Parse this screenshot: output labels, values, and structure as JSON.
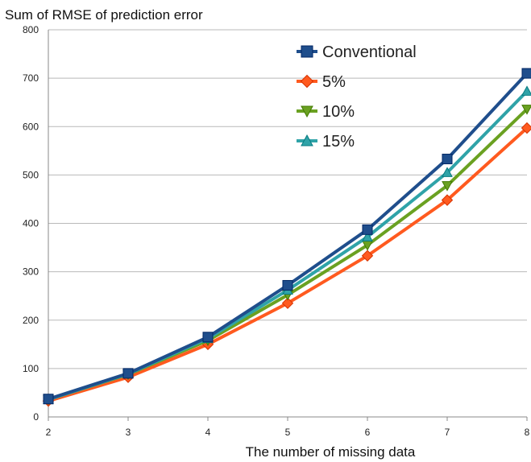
{
  "chart_data": {
    "type": "line",
    "title": "",
    "ylabel": "Sum of RMSE of prediction error",
    "xlabel": "The number of missing data",
    "x": [
      2,
      3,
      4,
      5,
      6,
      7,
      8
    ],
    "xlim": [
      2,
      8
    ],
    "ylim": [
      0,
      800
    ],
    "yticks": [
      0,
      100,
      200,
      300,
      400,
      500,
      600,
      700,
      800
    ],
    "grid": "horizontal",
    "legend_position": "top-right",
    "series": [
      {
        "name": "Conventional",
        "color": "#1f4e8c",
        "marker": "square",
        "values": [
          37,
          90,
          165,
          272,
          387,
          533,
          710
        ]
      },
      {
        "name": "5%",
        "color": "#ff5a1f",
        "marker": "diamond",
        "values": [
          33,
          82,
          150,
          235,
          333,
          448,
          597
        ]
      },
      {
        "name": "10%",
        "color": "#6aa121",
        "marker": "triangle-down",
        "values": [
          36,
          88,
          158,
          252,
          355,
          478,
          636
        ]
      },
      {
        "name": "15%",
        "color": "#2fa3a8",
        "marker": "triangle-up",
        "values": [
          36,
          89,
          162,
          262,
          372,
          505,
          673
        ]
      }
    ]
  }
}
